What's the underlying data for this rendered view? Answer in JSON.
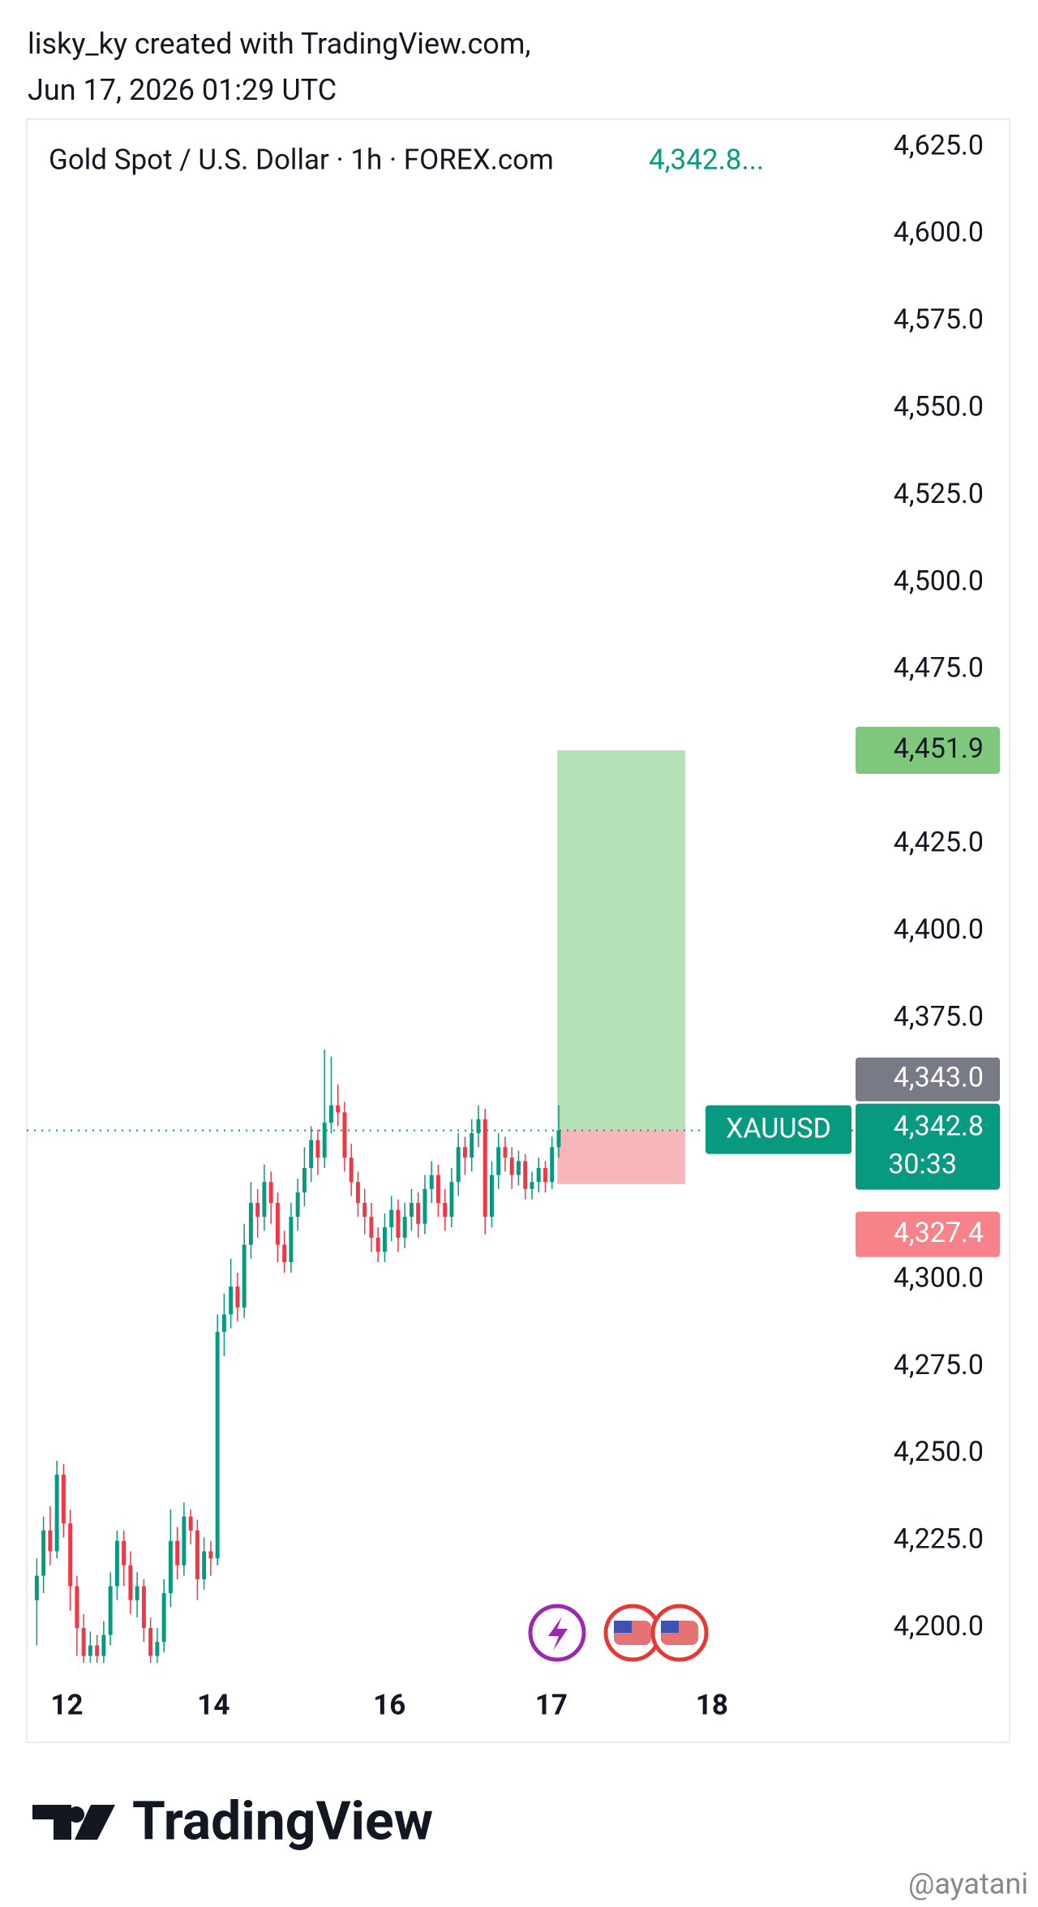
{
  "header": {
    "line1": "lisky_ky created with TradingView.com,",
    "line2": "Jun 17, 2026 01:29 UTC"
  },
  "chart_data": {
    "type": "candlestick",
    "title": "Gold Spot / U.S. Dollar · 1h · FOREX.com",
    "title_price": "4,342.8...",
    "up_color": "#089981",
    "down_color": "#f23645",
    "x": [
      0,
      1,
      2,
      3,
      4,
      5,
      6,
      7,
      8,
      9,
      10,
      11,
      12,
      13,
      14,
      15,
      16,
      17,
      18,
      19,
      20,
      21,
      22,
      23,
      24,
      25,
      26,
      27,
      28,
      29,
      30,
      31,
      32,
      33,
      34,
      35,
      36,
      37,
      38,
      39,
      40,
      41,
      42,
      43,
      44,
      45,
      46,
      47,
      48,
      49,
      50,
      51,
      52,
      53,
      54,
      55,
      56,
      57,
      58,
      59,
      60,
      61,
      62,
      63,
      64,
      65,
      66,
      67,
      68,
      69,
      70,
      71,
      72,
      73,
      74,
      75,
      76,
      77,
      78
    ],
    "open": [
      4208,
      4215,
      4228,
      4222,
      4244,
      4230,
      4212,
      4200,
      4192,
      4195,
      4192,
      4198,
      4212,
      4225,
      4218,
      4208,
      4212,
      4200,
      4192,
      4196,
      4210,
      4225,
      4218,
      4232,
      4228,
      4214,
      4222,
      4220,
      4285,
      4290,
      4298,
      4292,
      4310,
      4322,
      4318,
      4328,
      4322,
      4310,
      4305,
      4318,
      4325,
      4332,
      4340,
      4335,
      4345,
      4350,
      4348,
      4335,
      4328,
      4322,
      4318,
      4312,
      4308,
      4315,
      4320,
      4312,
      4318,
      4322,
      4316,
      4326,
      4330,
      4322,
      4318,
      4328,
      4338,
      4335,
      4342,
      4346,
      4318,
      4330,
      4338,
      4335,
      4330,
      4334,
      4326,
      4328,
      4332,
      4328,
      4338
    ],
    "high": [
      4220,
      4232,
      4235,
      4248,
      4247,
      4234,
      4215,
      4204,
      4199,
      4198,
      4202,
      4216,
      4228,
      4228,
      4222,
      4216,
      4214,
      4203,
      4200,
      4214,
      4234,
      4229,
      4236,
      4234,
      4231,
      4226,
      4225,
      4290,
      4296,
      4306,
      4302,
      4316,
      4328,
      4326,
      4333,
      4331,
      4325,
      4314,
      4322,
      4329,
      4338,
      4344,
      4343,
      4366,
      4364,
      4356,
      4351,
      4339,
      4331,
      4326,
      4322,
      4315,
      4319,
      4324,
      4323,
      4322,
      4326,
      4325,
      4330,
      4334,
      4333,
      4326,
      4332,
      4342,
      4341,
      4346,
      4350,
      4349,
      4334,
      4342,
      4341,
      4338,
      4337,
      4336,
      4331,
      4335,
      4334,
      4341,
      4350
    ],
    "low": [
      4195,
      4210,
      4218,
      4220,
      4226,
      4205,
      4192,
      4190,
      4190,
      4190,
      4190,
      4195,
      4208,
      4212,
      4204,
      4203,
      4196,
      4190,
      4190,
      4193,
      4206,
      4214,
      4215,
      4224,
      4208,
      4211,
      4215,
      4218,
      4278,
      4286,
      4288,
      4289,
      4306,
      4312,
      4314,
      4316,
      4305,
      4302,
      4302,
      4314,
      4321,
      4328,
      4330,
      4332,
      4342,
      4344,
      4331,
      4324,
      4318,
      4313,
      4308,
      4305,
      4305,
      4311,
      4308,
      4309,
      4314,
      4312,
      4313,
      4322,
      4318,
      4314,
      4315,
      4324,
      4330,
      4331,
      4338,
      4313,
      4315,
      4326,
      4331,
      4326,
      4327,
      4323,
      4323,
      4325,
      4325,
      4326,
      4335
    ],
    "close": [
      4215,
      4228,
      4222,
      4244,
      4230,
      4212,
      4200,
      4192,
      4195,
      4192,
      4198,
      4212,
      4225,
      4218,
      4208,
      4212,
      4200,
      4192,
      4196,
      4210,
      4225,
      4218,
      4232,
      4228,
      4214,
      4222,
      4220,
      4285,
      4290,
      4298,
      4292,
      4310,
      4322,
      4318,
      4328,
      4322,
      4310,
      4305,
      4318,
      4325,
      4332,
      4340,
      4335,
      4345,
      4350,
      4348,
      4335,
      4328,
      4322,
      4318,
      4312,
      4308,
      4315,
      4320,
      4312,
      4318,
      4322,
      4316,
      4326,
      4330,
      4322,
      4318,
      4328,
      4338,
      4335,
      4342,
      4346,
      4318,
      4330,
      4338,
      4335,
      4330,
      4334,
      4326,
      4328,
      4332,
      4328,
      4338,
      4342.8
    ],
    "xlim": [
      -1.5,
      122
    ],
    "xticks": [
      {
        "value": 4.5,
        "label": "12"
      },
      {
        "value": 26.4,
        "label": "14"
      },
      {
        "value": 52.7,
        "label": "16"
      },
      {
        "value": 76.9,
        "label": "17"
      },
      {
        "value": 100.9,
        "label": "18"
      }
    ],
    "ylim": [
      4190,
      4633
    ],
    "yticks": [
      {
        "value": 4625,
        "label": "4,625.0"
      },
      {
        "value": 4600,
        "label": "4,600.0"
      },
      {
        "value": 4575,
        "label": "4,575.0"
      },
      {
        "value": 4550,
        "label": "4,550.0"
      },
      {
        "value": 4525,
        "label": "4,525.0"
      },
      {
        "value": 4500,
        "label": "4,500.0"
      },
      {
        "value": 4475,
        "label": "4,475.0"
      },
      {
        "value": 4425,
        "label": "4,425.0"
      },
      {
        "value": 4400,
        "label": "4,400.0"
      },
      {
        "value": 4375,
        "label": "4,375.0"
      },
      {
        "value": 4300,
        "label": "4,300.0"
      },
      {
        "value": 4275,
        "label": "4,275.0"
      },
      {
        "value": 4250,
        "label": "4,250.0"
      },
      {
        "value": 4225,
        "label": "4,225.0"
      },
      {
        "value": 4200,
        "label": "4,200.0"
      }
    ],
    "position": {
      "x_start": 77.8,
      "x_end": 96.9,
      "take_profit": {
        "value": 4451.9,
        "label": "4,451.9",
        "color": "#b5dfb4",
        "tag_color": "#80c77e"
      },
      "entry": {
        "value": 4343.0,
        "label": "4,343.0",
        "tag_color": "#787b86"
      },
      "stop_loss": {
        "value": 4327.4,
        "label": "4,327.4",
        "color": "#f9b6ba",
        "tag_color": "#f7828a"
      }
    },
    "last_price": {
      "value": 4342.8,
      "label": "4,342.8",
      "symbol": "XAUUSD",
      "countdown": "30:33",
      "color": "#089981"
    }
  },
  "footer": {
    "logo": "TradingView",
    "watermark": "@ayatani"
  }
}
